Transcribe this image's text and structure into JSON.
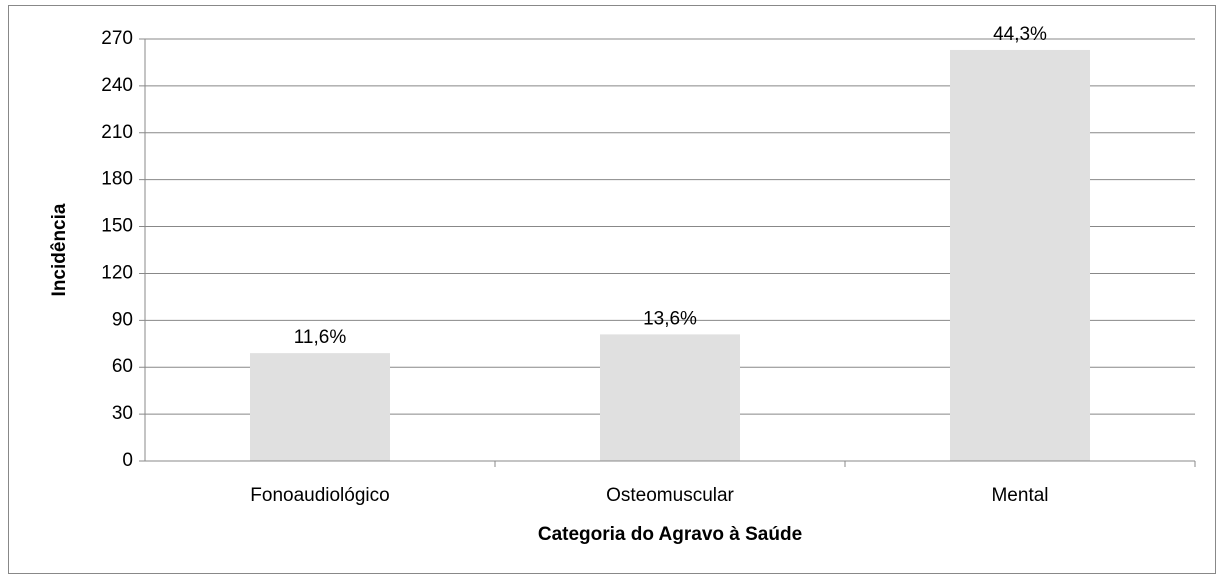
{
  "chart_data": {
    "type": "bar",
    "x_label": "Categoria do Agravo à Saúde",
    "y_label": "Incidência",
    "categories": [
      "Fonoaudiológico",
      "Osteomuscular",
      "Mental"
    ],
    "values": [
      69,
      81,
      263
    ],
    "annotations": [
      "11,6%",
      "13,6%",
      "44,3%"
    ],
    "color": "#e0e0e0",
    "ylim": [
      0,
      270
    ],
    "yticks": [
      0,
      30,
      60,
      90,
      120,
      150,
      180,
      210,
      240,
      270
    ],
    "grid": true
  }
}
